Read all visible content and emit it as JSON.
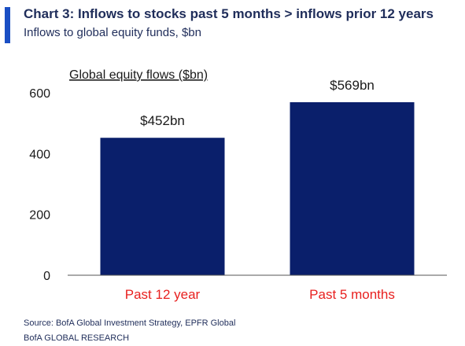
{
  "header": {
    "title": "Chart 3: Inflows to stocks past 5 months > inflows prior 12 years",
    "subtitle": "Inflows to global equity funds, $bn",
    "accent_color": "#1a4fc4"
  },
  "chart_data": {
    "type": "bar",
    "title": "Global equity flows ($bn)",
    "categories": [
      "Past 12 year",
      "Past 5 months"
    ],
    "values": [
      452,
      569
    ],
    "data_labels": [
      "$452bn",
      "$569bn"
    ],
    "ylim": [
      0,
      600
    ],
    "yticks": [
      0,
      200,
      400,
      600
    ],
    "xlabel": "",
    "ylabel": "",
    "grid": false,
    "bar_color": "#0a1f6b",
    "category_label_color": "#e8201f"
  },
  "footer": {
    "source": "Source:  BofA Global Investment Strategy, EPFR Global",
    "brand": "BofA GLOBAL RESEARCH"
  }
}
